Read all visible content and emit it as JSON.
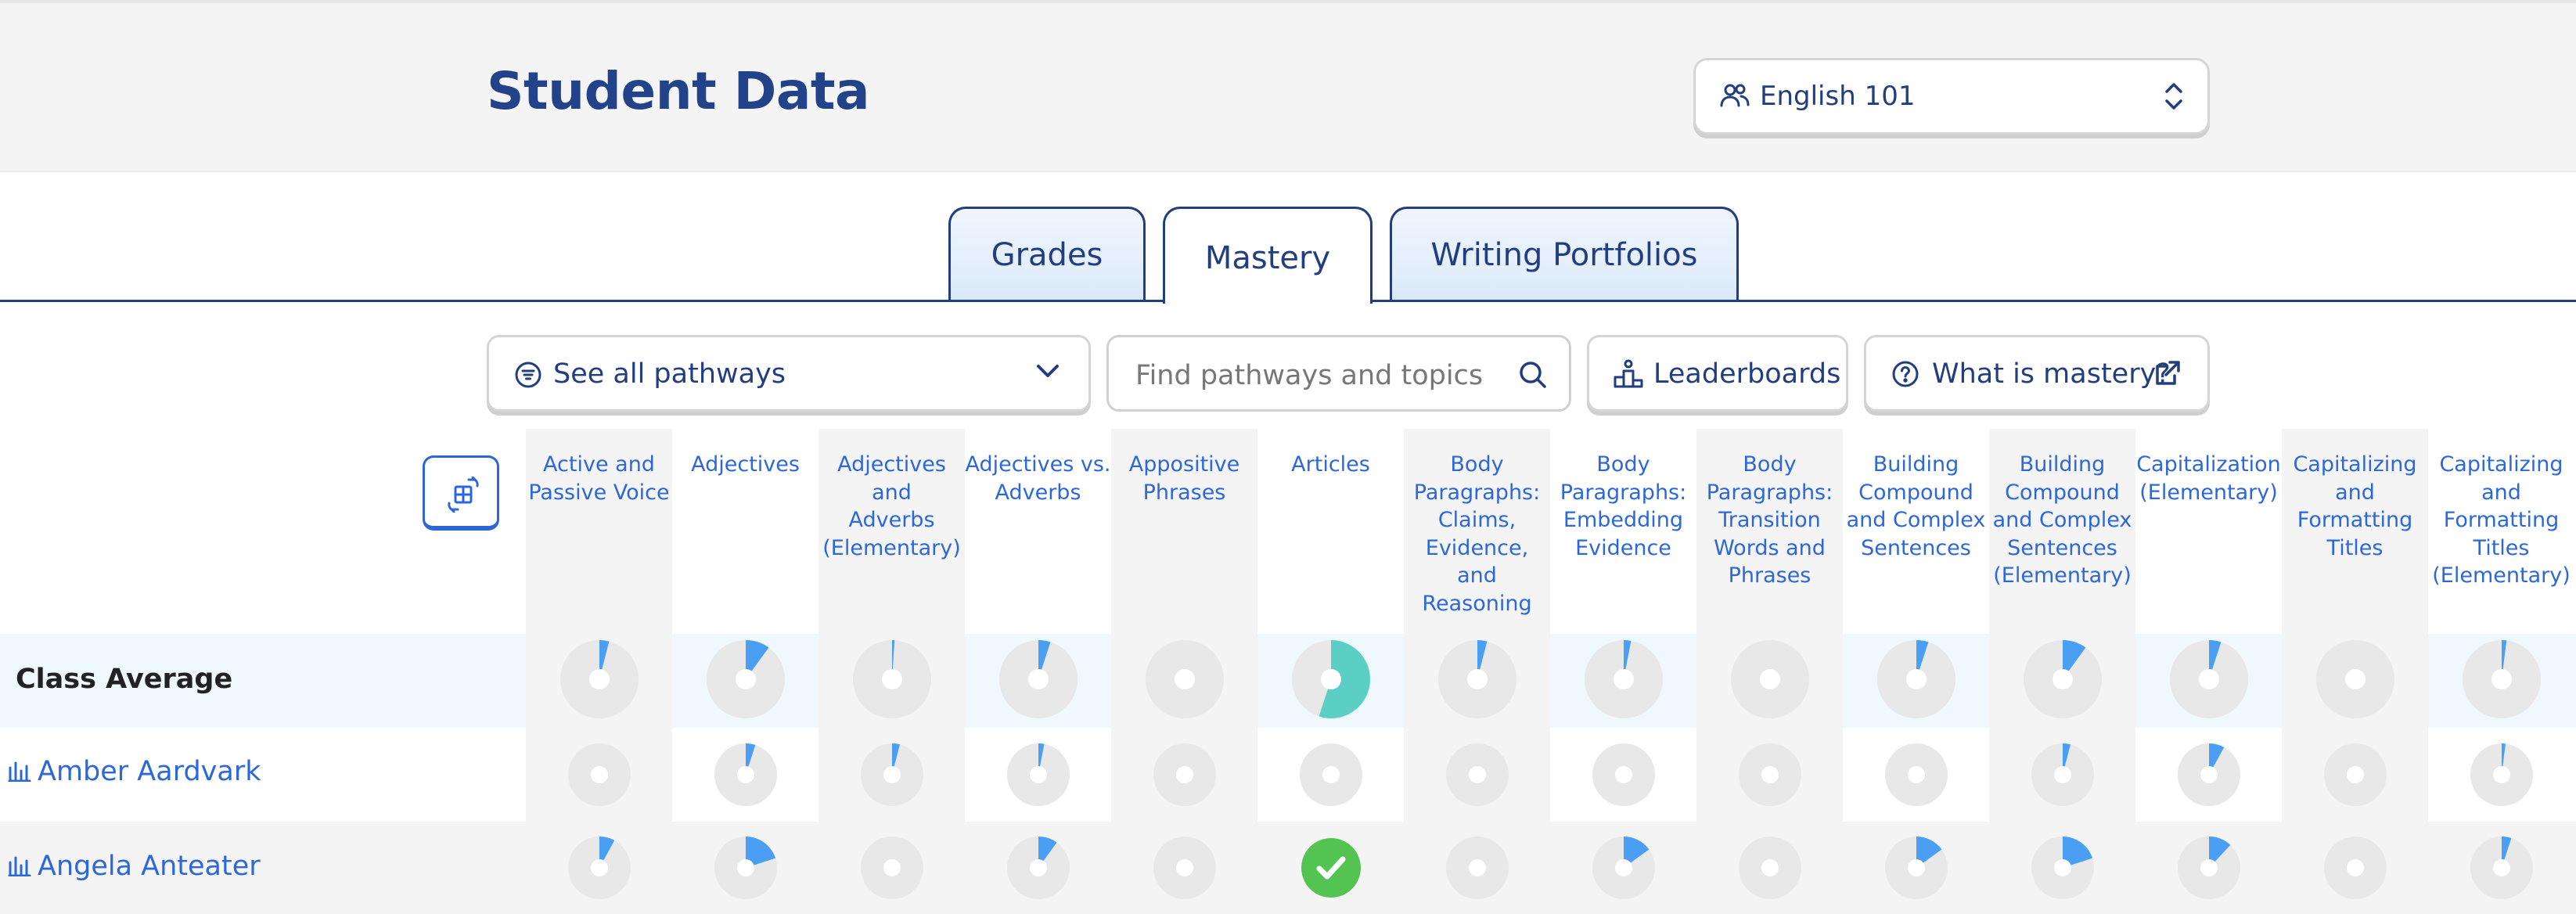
{
  "page": {
    "title": "Student Data"
  },
  "class_selector": {
    "value": "English 101",
    "icon": "users-icon"
  },
  "tabs": [
    {
      "label": "Grades",
      "active": false
    },
    {
      "label": "Mastery",
      "active": true
    },
    {
      "label": "Writing Portfolios",
      "active": false
    }
  ],
  "toolbar": {
    "pathways_label": "See all pathways",
    "search_placeholder": "Find pathways and topics",
    "leaderboards_label": "Leaderboards",
    "mastery_help_label": "What is mastery?"
  },
  "colors": {
    "progress": "#4a9ff2",
    "mastered": "#5ccfc4",
    "check": "#53c452",
    "ring": "#e8e8e8",
    "link": "#2d68d8",
    "navy": "#233e7f"
  },
  "columns": [
    [
      "Active and",
      "Passive Voice"
    ],
    [
      "Adjectives"
    ],
    [
      "Adjectives and",
      "Adverbs",
      "(Elementary)"
    ],
    [
      "Adjectives vs.",
      "Adverbs"
    ],
    [
      "Appositive",
      "Phrases"
    ],
    [
      "Articles"
    ],
    [
      "Body",
      "Paragraphs:",
      "Claims,",
      "Evidence, and",
      "Reasoning"
    ],
    [
      "Body",
      "Paragraphs:",
      "Embedding",
      "Evidence"
    ],
    [
      "Body",
      "Paragraphs:",
      "Transition",
      "Words and",
      "Phrases"
    ],
    [
      "Building",
      "Compound",
      "and Complex",
      "Sentences"
    ],
    [
      "Building",
      "Compound",
      "and Complex",
      "Sentences",
      "(Elementary)"
    ],
    [
      "Capitalization",
      "(Elementary)"
    ],
    [
      "Capitalizing",
      "and",
      "Formatting",
      "Titles"
    ],
    [
      "Capitalizing",
      "and",
      "Formatting",
      "Titles",
      "(Elementary)"
    ]
  ],
  "rows": [
    {
      "label": "Class Average",
      "mastery": [
        0.04,
        0.1,
        0.01,
        0.05,
        0,
        0.55,
        0.04,
        0.03,
        0,
        0.05,
        0.1,
        0.05,
        0,
        0.02
      ]
    },
    {
      "label": "Amber Aardvark",
      "mastery": [
        0,
        0.05,
        0.04,
        0.03,
        0,
        0,
        0,
        0,
        0,
        0,
        0.04,
        0.08,
        0,
        0.02
      ]
    },
    {
      "label": "Angela Anteater",
      "mastery": [
        0.08,
        0.2,
        0,
        0.1,
        0,
        1,
        0,
        0.15,
        0,
        0.15,
        0.2,
        0.12,
        0,
        0.05
      ]
    }
  ]
}
